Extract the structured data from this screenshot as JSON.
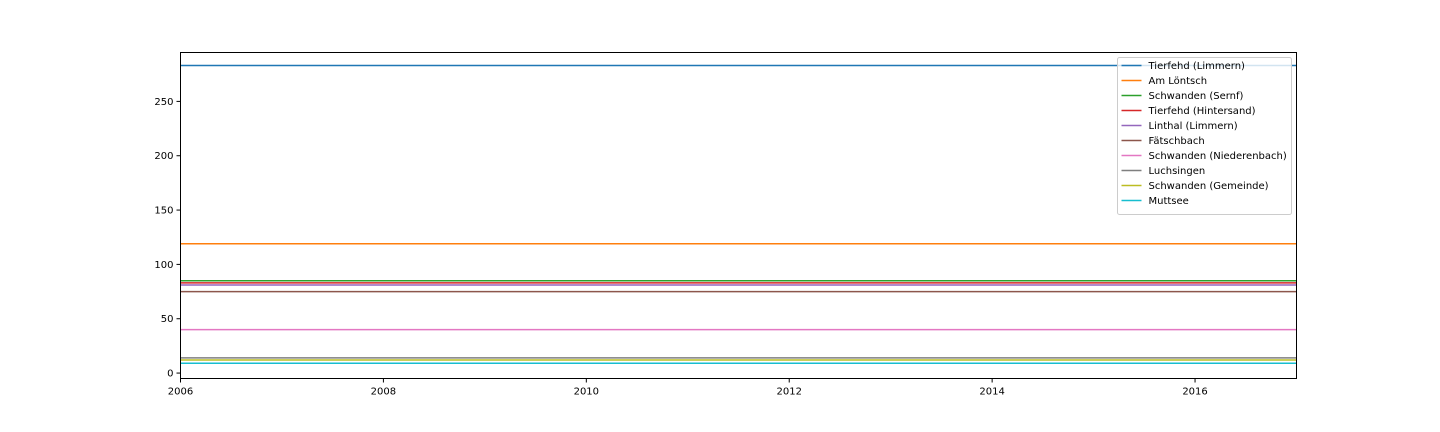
{
  "chart_data": {
    "type": "line",
    "title": "",
    "xlabel": "",
    "ylabel": "",
    "xlim": [
      2006,
      2017
    ],
    "ylim": [
      -5,
      295
    ],
    "x_ticks": [
      2006,
      2008,
      2010,
      2012,
      2014,
      2016
    ],
    "y_ticks": [
      0,
      50,
      100,
      150,
      200,
      250
    ],
    "x_tick_labels": [
      "2006",
      "2008",
      "2010",
      "2012",
      "2014",
      "2016"
    ],
    "y_tick_labels": [
      "0",
      "50",
      "100",
      "150",
      "200",
      "250"
    ],
    "grid": false,
    "legend_position": "top-right",
    "series": [
      {
        "name": "Tierfehd (Limmern)",
        "color": "#1f77b4",
        "x": [
          2006,
          2017
        ],
        "y": [
          283,
          283
        ]
      },
      {
        "name": "Am Löntsch",
        "color": "#ff7f0e",
        "x": [
          2006,
          2017
        ],
        "y": [
          119,
          119
        ]
      },
      {
        "name": "Schwanden (Sernf)",
        "color": "#2ca02c",
        "x": [
          2006,
          2017
        ],
        "y": [
          85,
          85
        ]
      },
      {
        "name": "Tierfehd (Hintersand)",
        "color": "#d62728",
        "x": [
          2006,
          2017
        ],
        "y": [
          83,
          83
        ]
      },
      {
        "name": "Linthal (Limmern)",
        "color": "#9467bd",
        "x": [
          2006,
          2017
        ],
        "y": [
          81,
          81
        ]
      },
      {
        "name": "Fätschbach",
        "color": "#8c564b",
        "x": [
          2006,
          2017
        ],
        "y": [
          75,
          75
        ]
      },
      {
        "name": "Schwanden (Niederenbach)",
        "color": "#e377c2",
        "x": [
          2006,
          2017
        ],
        "y": [
          40,
          40
        ]
      },
      {
        "name": "Luchsingen",
        "color": "#7f7f7f",
        "x": [
          2006,
          2017
        ],
        "y": [
          14,
          14
        ]
      },
      {
        "name": "Schwanden (Gemeinde)",
        "color": "#bcbd22",
        "x": [
          2006,
          2017
        ],
        "y": [
          12,
          12
        ]
      },
      {
        "name": "Muttsee",
        "color": "#17becf",
        "x": [
          2006,
          2017
        ],
        "y": [
          9,
          9
        ]
      }
    ]
  }
}
